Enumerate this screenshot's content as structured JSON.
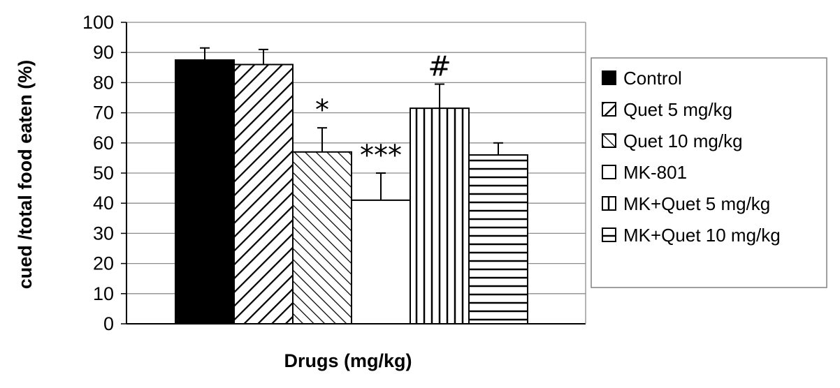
{
  "chart_data": {
    "type": "bar",
    "title": "",
    "xlabel": "Drugs (mg/kg)",
    "ylabel": "cued /total food eaten (%)",
    "ylim": [
      0,
      100
    ],
    "yticks": [
      0,
      10,
      20,
      30,
      40,
      50,
      60,
      70,
      80,
      90,
      100
    ],
    "grid": true,
    "legend_position": "right",
    "series": [
      {
        "name": "Control",
        "value": 87.5,
        "error": 4,
        "pattern": "solid",
        "annotation": ""
      },
      {
        "name": "Quet 5 mg/kg",
        "value": 86,
        "error": 5,
        "pattern": "wide-diagonal",
        "annotation": ""
      },
      {
        "name": "Quet 10 mg/kg",
        "value": 57,
        "error": 8,
        "pattern": "narrow-diagonal",
        "annotation": "*"
      },
      {
        "name": "MK-801",
        "value": 41,
        "error": 9,
        "pattern": "none",
        "annotation": "***"
      },
      {
        "name": "MK+Quet 5 mg/kg",
        "value": 71.5,
        "error": 8,
        "pattern": "vertical",
        "annotation": "#"
      },
      {
        "name": "MK+Quet 10 mg/kg",
        "value": 56,
        "error": 4,
        "pattern": "horizontal",
        "annotation": ""
      }
    ]
  }
}
